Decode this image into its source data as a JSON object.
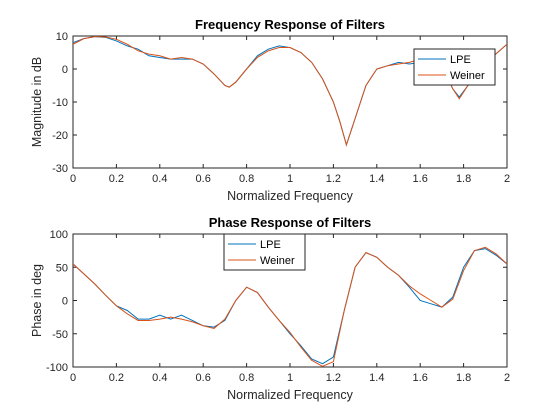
{
  "chart_data": [
    {
      "type": "line",
      "title": "Frequency Response of Filters",
      "xlabel": "Normalized Frequency",
      "ylabel": "Magnitude in dB",
      "xlim": [
        0,
        2
      ],
      "ylim": [
        -30,
        10
      ],
      "xticks": [
        "0",
        "0.2",
        "0.4",
        "0.6",
        "0.8",
        "1",
        "1.2",
        "1.4",
        "1.6",
        "1.8",
        "2"
      ],
      "yticks": [
        "-30",
        "-20",
        "-10",
        "0",
        "10"
      ],
      "grid": false,
      "legend": {
        "placement": "top-right",
        "entries": [
          "LPE",
          "Weiner"
        ]
      },
      "x": [
        0,
        0.05,
        0.1,
        0.15,
        0.2,
        0.25,
        0.3,
        0.35,
        0.4,
        0.45,
        0.5,
        0.55,
        0.6,
        0.65,
        0.7,
        0.72,
        0.75,
        0.8,
        0.85,
        0.9,
        0.95,
        1.0,
        1.05,
        1.1,
        1.15,
        1.2,
        1.23,
        1.26,
        1.3,
        1.35,
        1.4,
        1.45,
        1.5,
        1.55,
        1.6,
        1.65,
        1.7,
        1.75,
        1.78,
        1.82,
        1.87,
        1.93,
        2.0
      ],
      "series": [
        {
          "name": "LPE",
          "color": "#0072BD",
          "values": [
            8,
            9.2,
            9.8,
            9.6,
            8.5,
            7,
            6,
            4,
            3.5,
            3,
            3,
            3,
            1.5,
            -1.5,
            -5,
            -5.5,
            -4,
            0,
            4,
            6,
            7,
            6.5,
            5,
            2,
            -3,
            -10,
            -16,
            -23,
            -15,
            -5,
            0,
            1,
            2,
            1.5,
            2,
            3,
            1,
            -6,
            -8.5,
            -5,
            0,
            3.5,
            7.5
          ]
        },
        {
          "name": "Weiner",
          "color": "#D95319",
          "values": [
            7.5,
            9.2,
            9.8,
            9.7,
            9,
            7.5,
            5.5,
            4.5,
            4,
            3,
            3.5,
            3,
            1.5,
            -1.5,
            -5,
            -5.5,
            -4,
            0,
            3.5,
            5.5,
            6.5,
            6.5,
            5,
            2,
            -3,
            -10,
            -16,
            -23,
            -15,
            -5,
            0,
            1,
            1.5,
            2,
            3,
            4,
            2,
            -6,
            -9,
            -5,
            0,
            3.5,
            7.5
          ]
        }
      ]
    },
    {
      "type": "line",
      "title": "Phase Response of  Filters",
      "xlabel": "Normalized Frequency",
      "ylabel": "Phase in deg",
      "xlim": [
        0,
        2
      ],
      "ylim": [
        -100,
        100
      ],
      "xticks": [
        "0",
        "0.2",
        "0.4",
        "0.6",
        "0.8",
        "1",
        "1.2",
        "1.4",
        "1.6",
        "1.8",
        "2"
      ],
      "yticks": [
        "-100",
        "-50",
        "0",
        "50",
        "100"
      ],
      "grid": false,
      "legend": {
        "placement": "top-center",
        "entries": [
          "LPE",
          "Weiner"
        ]
      },
      "x": [
        0,
        0.05,
        0.1,
        0.15,
        0.2,
        0.25,
        0.3,
        0.35,
        0.4,
        0.45,
        0.5,
        0.55,
        0.6,
        0.65,
        0.7,
        0.75,
        0.8,
        0.85,
        0.9,
        0.95,
        1.0,
        1.05,
        1.1,
        1.15,
        1.2,
        1.25,
        1.3,
        1.35,
        1.4,
        1.45,
        1.5,
        1.55,
        1.6,
        1.65,
        1.7,
        1.75,
        1.8,
        1.85,
        1.9,
        1.95,
        2.0
      ],
      "series": [
        {
          "name": "LPE",
          "color": "#0072BD",
          "values": [
            55,
            40,
            25,
            8,
            -8,
            -15,
            -28,
            -28,
            -22,
            -28,
            -22,
            -30,
            -38,
            -40,
            -30,
            0,
            20,
            12,
            -10,
            -30,
            -50,
            -68,
            -88,
            -95,
            -85,
            -15,
            50,
            72,
            65,
            50,
            38,
            20,
            0,
            -5,
            -10,
            5,
            50,
            75,
            78,
            68,
            55
          ]
        },
        {
          "name": "Weiner",
          "color": "#D95319",
          "values": [
            55,
            40,
            25,
            8,
            -8,
            -20,
            -30,
            -30,
            -28,
            -25,
            -28,
            -32,
            -38,
            -42,
            -28,
            0,
            20,
            12,
            -10,
            -30,
            -48,
            -70,
            -90,
            -99,
            -92,
            -15,
            50,
            72,
            65,
            50,
            38,
            22,
            10,
            0,
            -10,
            2,
            45,
            75,
            80,
            70,
            55
          ]
        }
      ]
    }
  ]
}
